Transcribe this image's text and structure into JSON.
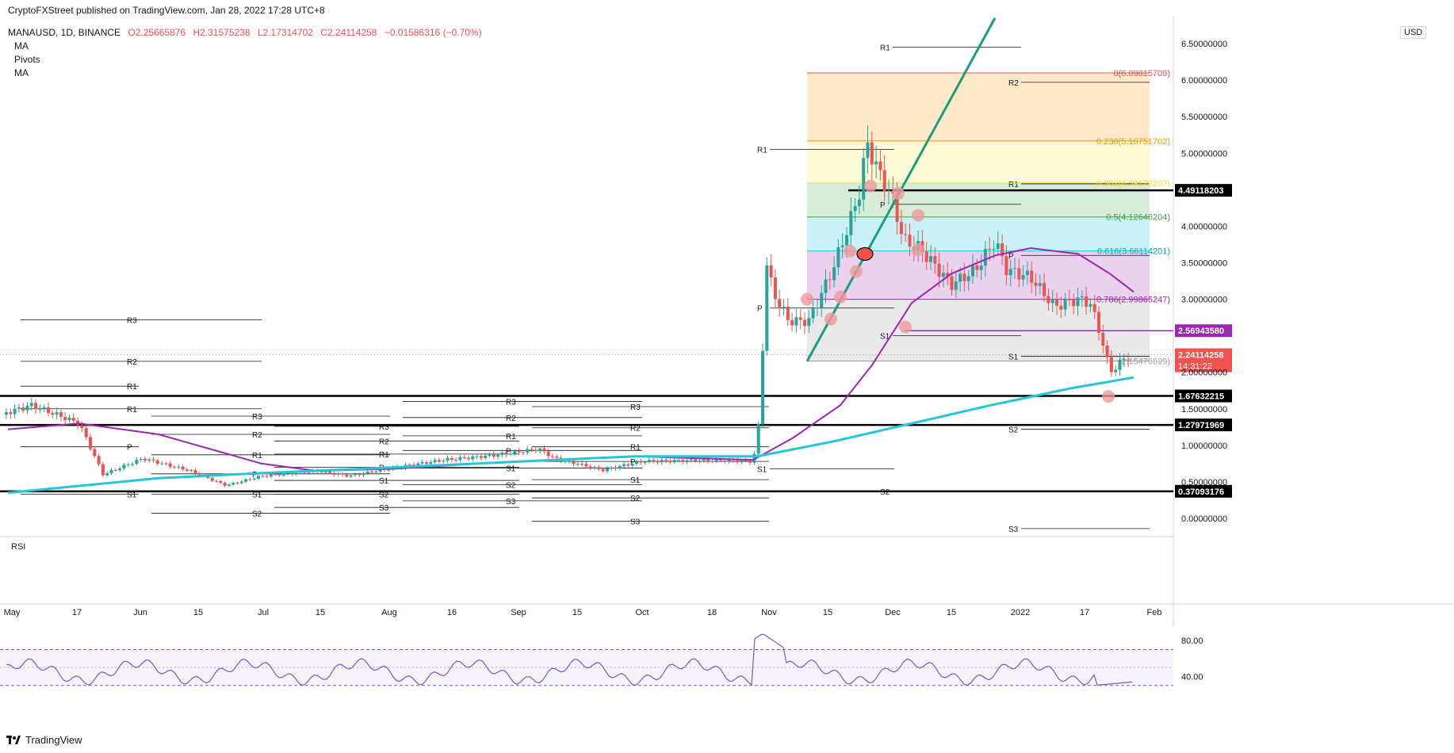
{
  "header": {
    "publisher": "CryptoFXStreet published on TradingView.com, Jan 28, 2022 17:28 UTC+8",
    "symbol": "MANAUSD, 1D, BINANCE",
    "open": "O2.25665876",
    "high": "H2.31575238",
    "low": "L2.17314702",
    "close": "C2.24114258",
    "change": "−0.01586316 (−0.70%)",
    "indicators": [
      "MA",
      "Pivots",
      "MA"
    ]
  },
  "currency": "USD",
  "footer": {
    "brand": "TradingView"
  },
  "colors": {
    "up": "#26a69a",
    "down": "#ef5350",
    "ma50": "#9c27b0",
    "ma200": "#26c6da",
    "trend": "#1a9e7e",
    "rsi": "#7e57c2",
    "marker": "#ef9a9a"
  },
  "chart_data": {
    "type": "candlestick",
    "title": "",
    "x_ticks": [
      "May",
      "17",
      "Jun",
      "15",
      "Jul",
      "15",
      "Aug",
      "16",
      "Sep",
      "15",
      "Oct",
      "18",
      "Nov",
      "15",
      "Dec",
      "15",
      "2022",
      "17",
      "Feb"
    ],
    "y_ticks": [
      "6.50000000",
      "6.00000000",
      "5.50000000",
      "5.00000000",
      "4.00000000",
      "3.50000000",
      "3.00000000",
      "2.00000000",
      "1.50000000",
      "1.00000000",
      "0.50000000",
      "0.00000000"
    ],
    "ylim": [
      -0.3,
      6.65
    ],
    "last_price": {
      "value": 2.24114258,
      "label": "2.24114258",
      "countdown": "14:31:22"
    },
    "horizontal_levels": [
      {
        "value": 4.49118203,
        "label": "4.49118203",
        "style": "black"
      },
      {
        "value": 2.5694358,
        "label": "2.56943580",
        "style": "purple"
      },
      {
        "value": 1.67632215,
        "label": "1.67632215",
        "style": "black"
      },
      {
        "value": 1.27971969,
        "label": "1.27971969",
        "style": "black"
      },
      {
        "value": 0.37093176,
        "label": "0.37093176",
        "style": "black"
      }
    ],
    "fibonacci": [
      {
        "ratio": "0",
        "value": 6.09815709,
        "label": "0(6.09815709)"
      },
      {
        "ratio": "0.236",
        "value": 5.16751702,
        "label": "0.236(5.16751702)"
      },
      {
        "ratio": "0.382",
        "value": 4.59178207,
        "label": "0.382(4.59178207)"
      },
      {
        "ratio": "0.5",
        "value": 4.12646204,
        "label": "0.5(4.12646204)"
      },
      {
        "ratio": "0.618",
        "value": 3.66114201,
        "label": "0.618(3.66114201)"
      },
      {
        "ratio": "0.786",
        "value": 2.99865247,
        "label": "0.786(2.99865247)"
      },
      {
        "ratio": "1",
        "value": 2.15476699,
        "label": "(2.15476699)"
      }
    ],
    "pivots": [
      {
        "label": "R3",
        "value": 2.72
      },
      {
        "label": "R2",
        "value": 2.15
      },
      {
        "label": "R1",
        "value": 1.81
      },
      {
        "label": "R1",
        "value": 1.5
      },
      {
        "label": "P",
        "value": 0.98
      },
      {
        "label": "S1",
        "value": 0.33
      },
      {
        "label": "R3",
        "value": 1.4
      },
      {
        "label": "R2",
        "value": 1.15
      },
      {
        "label": "R1",
        "value": 0.87
      },
      {
        "label": "P",
        "value": 0.61
      },
      {
        "label": "S1",
        "value": 0.33
      },
      {
        "label": "S2",
        "value": 0.07
      },
      {
        "label": "R3",
        "value": 1.26
      },
      {
        "label": "R2",
        "value": 1.06
      },
      {
        "label": "R1",
        "value": 0.88
      },
      {
        "label": "P",
        "value": 0.7
      },
      {
        "label": "S1",
        "value": 0.52
      },
      {
        "label": "S2",
        "value": 0.33
      },
      {
        "label": "S3",
        "value": 0.15
      },
      {
        "label": "R3",
        "value": 1.6
      },
      {
        "label": "R2",
        "value": 1.38
      },
      {
        "label": "R1",
        "value": 1.13
      },
      {
        "label": "P",
        "value": 0.93
      },
      {
        "label": "S1",
        "value": 0.69
      },
      {
        "label": "S2",
        "value": 0.46
      },
      {
        "label": "S3",
        "value": 0.24
      },
      {
        "label": "R3",
        "value": 1.53
      },
      {
        "label": "R2",
        "value": 1.24
      },
      {
        "label": "R1",
        "value": 0.98
      },
      {
        "label": "P",
        "value": 0.78
      },
      {
        "label": "S1",
        "value": 0.53
      },
      {
        "label": "S2",
        "value": 0.28
      },
      {
        "label": "S3",
        "value": -0.04
      },
      {
        "label": "R1",
        "value": 5.05
      },
      {
        "label": "P",
        "value": 2.88
      },
      {
        "label": "S1",
        "value": 0.68
      },
      {
        "label": "R1",
        "value": 6.45
      },
      {
        "label": "P",
        "value": 4.3
      },
      {
        "label": "S1",
        "value": 2.5
      },
      {
        "label": "S2",
        "value": 0.37
      },
      {
        "label": "R2",
        "value": 5.97
      },
      {
        "label": "R1",
        "value": 4.58
      },
      {
        "label": "P",
        "value": 3.6
      },
      {
        "label": "S1",
        "value": 2.22
      },
      {
        "label": "S2",
        "value": 1.22
      },
      {
        "label": "S3",
        "value": -0.14
      }
    ],
    "rsi": {
      "label": "RSI",
      "ticks": [
        "80.00",
        "40.00"
      ],
      "upper": 70,
      "lower": 30,
      "ylim": [
        20,
        100
      ]
    }
  }
}
